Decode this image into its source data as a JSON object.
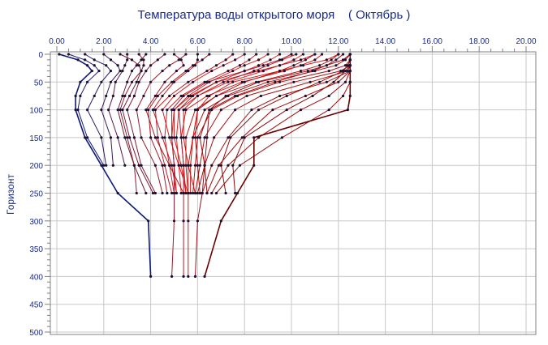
{
  "chart_data": {
    "type": "line",
    "title": "Температура воды открытого моря    ( Октябрь )",
    "xlabel": "",
    "ylabel": "Горизонт",
    "x_position": "top",
    "y_inverted": true,
    "xlim": [
      0,
      20
    ],
    "ylim": [
      0,
      500
    ],
    "x_ticks": [
      "0.00",
      "2.00",
      "4.00",
      "6.00",
      "8.00",
      "10.00",
      "12.00",
      "14.00",
      "16.00",
      "18.00",
      "20.00"
    ],
    "y_ticks": [
      "0",
      "50",
      "100",
      "150",
      "200",
      "250",
      "300",
      "350",
      "400",
      "450",
      "500"
    ],
    "grid": true,
    "depths": [
      0,
      10,
      20,
      30,
      50,
      75,
      100,
      150,
      200,
      250,
      300,
      400
    ],
    "color_scale": [
      "#0a1a7a",
      "#8a1a2a",
      "#ee2020",
      "#6a0000"
    ],
    "series": [
      {
        "values": [
          0.1,
          0.9,
          1.3,
          1.5,
          1.0,
          0.8,
          0.8,
          1.2,
          1.9,
          2.6,
          3.9,
          4.0
        ],
        "color": "#0a1a7a"
      },
      {
        "values": [
          0.5,
          1.2,
          1.6,
          1.8,
          1.3,
          1.0,
          0.9,
          1.3,
          2.0
        ]
      },
      {
        "values": [
          1.2,
          1.6,
          2.1,
          2.3,
          1.9,
          1.6,
          1.3,
          1.9,
          2.1
        ]
      },
      {
        "values": [
          2.0,
          2.3,
          2.6,
          2.7,
          2.3,
          2.1,
          1.9,
          2.3,
          2.4
        ]
      },
      {
        "values": [
          3.0,
          3.0,
          2.9,
          2.8,
          2.5,
          2.4,
          2.2,
          2.6,
          2.9
        ]
      },
      {
        "values": [
          3.8,
          3.6,
          3.4,
          3.2,
          3.0,
          2.8,
          2.6,
          2.9,
          3.3,
          3.8
        ]
      },
      {
        "values": [
          4.6,
          4.3,
          4.0,
          3.8,
          3.5,
          3.3,
          3.0,
          3.3,
          3.6,
          4.2
        ]
      },
      {
        "values": [
          5.5,
          5.2,
          4.8,
          4.5,
          4.0,
          3.7,
          3.4,
          3.6,
          4.2,
          4.5
        ]
      },
      {
        "values": [
          6.5,
          6.2,
          5.8,
          5.5,
          4.9,
          4.3,
          3.9,
          4.0,
          4.5,
          4.7
        ]
      },
      {
        "values": [
          7.5,
          7.2,
          6.8,
          6.4,
          5.6,
          4.8,
          4.2,
          4.3,
          4.6,
          4.9
        ]
      },
      {
        "values": [
          8.5,
          8.2,
          7.8,
          7.3,
          6.3,
          5.3,
          4.7,
          4.6,
          4.8,
          5.0
        ]
      },
      {
        "values": [
          9.5,
          9.1,
          8.6,
          8.0,
          6.8,
          5.7,
          5.0,
          4.9,
          5.0,
          5.1
        ]
      },
      {
        "values": [
          10.5,
          10.1,
          9.5,
          8.8,
          7.3,
          6.0,
          5.2,
          5.1,
          5.2,
          5.3
        ]
      },
      {
        "values": [
          11.3,
          11.0,
          10.4,
          9.7,
          7.9,
          6.4,
          5.5,
          5.3,
          5.4,
          5.5
        ]
      },
      {
        "values": [
          12.0,
          11.7,
          11.2,
          10.4,
          8.5,
          6.8,
          5.9,
          5.5,
          5.5,
          5.6
        ]
      },
      {
        "values": [
          12.5,
          12.3,
          11.9,
          11.0,
          9.0,
          7.3,
          6.3,
          5.8,
          5.7,
          5.7
        ]
      },
      {
        "values": [
          12.5,
          12.5,
          12.3,
          11.6,
          9.5,
          7.7,
          6.6,
          6.0,
          5.9,
          5.8
        ]
      },
      {
        "values": [
          12.5,
          12.5,
          12.5,
          12.1,
          10.1,
          8.1,
          7.0,
          6.3,
          6.1,
          5.9
        ]
      },
      {
        "values": [
          12.5,
          12.5,
          12.5,
          12.4,
          10.8,
          8.7,
          7.6,
          6.7,
          6.3,
          6.0
        ]
      },
      {
        "values": [
          12.5,
          12.5,
          12.5,
          12.5,
          11.5,
          9.5,
          8.3,
          7.3,
          6.6,
          6.2
        ]
      },
      {
        "values": [
          12.5,
          12.5,
          12.5,
          12.5,
          12.0,
          10.6,
          9.2,
          7.9,
          6.9,
          6.4
        ]
      },
      {
        "values": [
          12.5,
          12.5,
          12.5,
          12.5,
          12.3,
          11.6,
          10.4,
          8.6,
          7.3,
          6.6
        ]
      },
      {
        "values": [
          12.5,
          12.5,
          12.5,
          12.5,
          12.5,
          12.2,
          11.6,
          9.6,
          7.8,
          6.8
        ]
      },
      {
        "values": [
          2.7,
          3.2,
          3.5,
          3.6,
          3.4,
          3.1,
          2.8,
          3.1,
          3.5,
          4.1
        ]
      },
      {
        "values": [
          5.0,
          5.3,
          5.4,
          5.1,
          4.6,
          4.2,
          3.8,
          4.2,
          4.8,
          5.4
        ]
      },
      {
        "values": [
          8.0,
          7.6,
          7.1,
          6.6,
          5.8,
          5.0,
          4.5,
          4.8,
          5.2,
          5.6
        ]
      },
      {
        "values": [
          10.2,
          9.6,
          9.0,
          8.4,
          7.1,
          6.0,
          5.4,
          5.4,
          5.6,
          5.9
        ]
      },
      {
        "values": [
          12.2,
          11.9,
          11.5,
          10.9,
          9.3,
          7.6,
          6.5,
          6.1,
          6.3,
          6.4
        ]
      },
      {
        "values": [
          12.5,
          12.5,
          12.4,
          12.2,
          11.2,
          9.8,
          8.6,
          7.4,
          7.0,
          7.2
        ]
      },
      {
        "values": [
          3.5,
          3.7,
          3.7,
          3.6,
          3.2,
          2.9,
          2.7,
          3.0,
          3.3,
          3.4
        ]
      },
      {
        "values": [
          6.0,
          6.0,
          5.9,
          5.6,
          5.0,
          4.5,
          4.1,
          4.5,
          4.9,
          5.1
        ]
      },
      {
        "values": [
          9.0,
          8.6,
          8.0,
          7.5,
          6.5,
          5.6,
          5.0,
          5.0,
          5.3,
          5.5
        ]
      },
      {
        "values": [
          11.0,
          10.6,
          10.1,
          9.5,
          8.0,
          6.8,
          6.0,
          5.9,
          6.0,
          6.1
        ]
      },
      {
        "values": [
          12.5,
          12.5,
          12.5,
          12.3,
          11.8,
          10.9,
          9.8,
          8.0,
          7.5,
          7.6
        ]
      },
      {
        "values": [
          12.5,
          12.5,
          12.5,
          12.5,
          12.5,
          12.5,
          12.4,
          8.4,
          8.4,
          7.7,
          7.0,
          6.3
        ],
        "color": "#6a0000"
      },
      {
        "values": [
          12.0,
          11.5,
          10.5,
          9.5,
          7.5,
          6.5,
          6.0,
          5.8,
          5.6,
          5.6,
          5.6,
          5.6
        ],
        "color": "#d01818"
      },
      {
        "values": [
          11.0,
          10.4,
          9.5,
          8.6,
          6.8,
          5.8,
          5.2,
          5.3,
          5.4,
          5.4,
          5.4,
          5.4
        ],
        "color": "#b01a2a"
      },
      {
        "values": [
          10.0,
          9.5,
          8.8,
          8.0,
          6.4,
          5.4,
          4.9,
          4.9,
          5.0,
          5.0,
          5.0,
          4.9
        ],
        "color": "#a01a30"
      },
      {
        "values": [
          12.5,
          12.2,
          11.5,
          10.7,
          8.6,
          7.2,
          6.5,
          6.4,
          6.3,
          6.2,
          6.0,
          5.9
        ],
        "color": "#901020"
      }
    ]
  }
}
